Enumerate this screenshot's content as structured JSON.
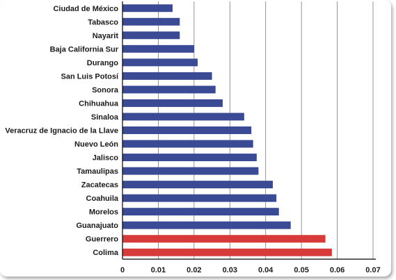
{
  "chart_data": {
    "type": "bar",
    "orientation": "horizontal",
    "title": "",
    "xlabel": "",
    "ylabel": "",
    "categories": [
      "Ciudad de México",
      "Tabasco",
      "Nayarit",
      "Baja California Sur",
      "Durango",
      "San Luis Potosí",
      "Sonora",
      "Chihuahua",
      "Sinaloa",
      "Veracruz de Ignacio de la Llave",
      "Nuevo León",
      "Jalisco",
      "Tamaulipas",
      "Zacatecas",
      "Coahuila",
      "Morelos",
      "Guanajuato",
      "Guerrero",
      "Colima"
    ],
    "values": [
      0.014,
      0.016,
      0.016,
      0.02,
      0.021,
      0.025,
      0.026,
      0.028,
      0.034,
      0.036,
      0.0365,
      0.0375,
      0.038,
      0.042,
      0.043,
      0.0437,
      0.047,
      0.0567,
      0.0585
    ],
    "highlighted": [
      "Guerrero",
      "Colima"
    ],
    "xlim": [
      0,
      0.07
    ],
    "xticks": [
      "0",
      "0.01",
      "0.02",
      "0.03",
      "0.04",
      "0.05",
      "0.06",
      "0.07"
    ],
    "grid": "vertical",
    "colors": {
      "bar": "#3a4a94",
      "highlight": "#d63b3a",
      "grid": "#7a7a7a",
      "axis": "#000000"
    }
  }
}
